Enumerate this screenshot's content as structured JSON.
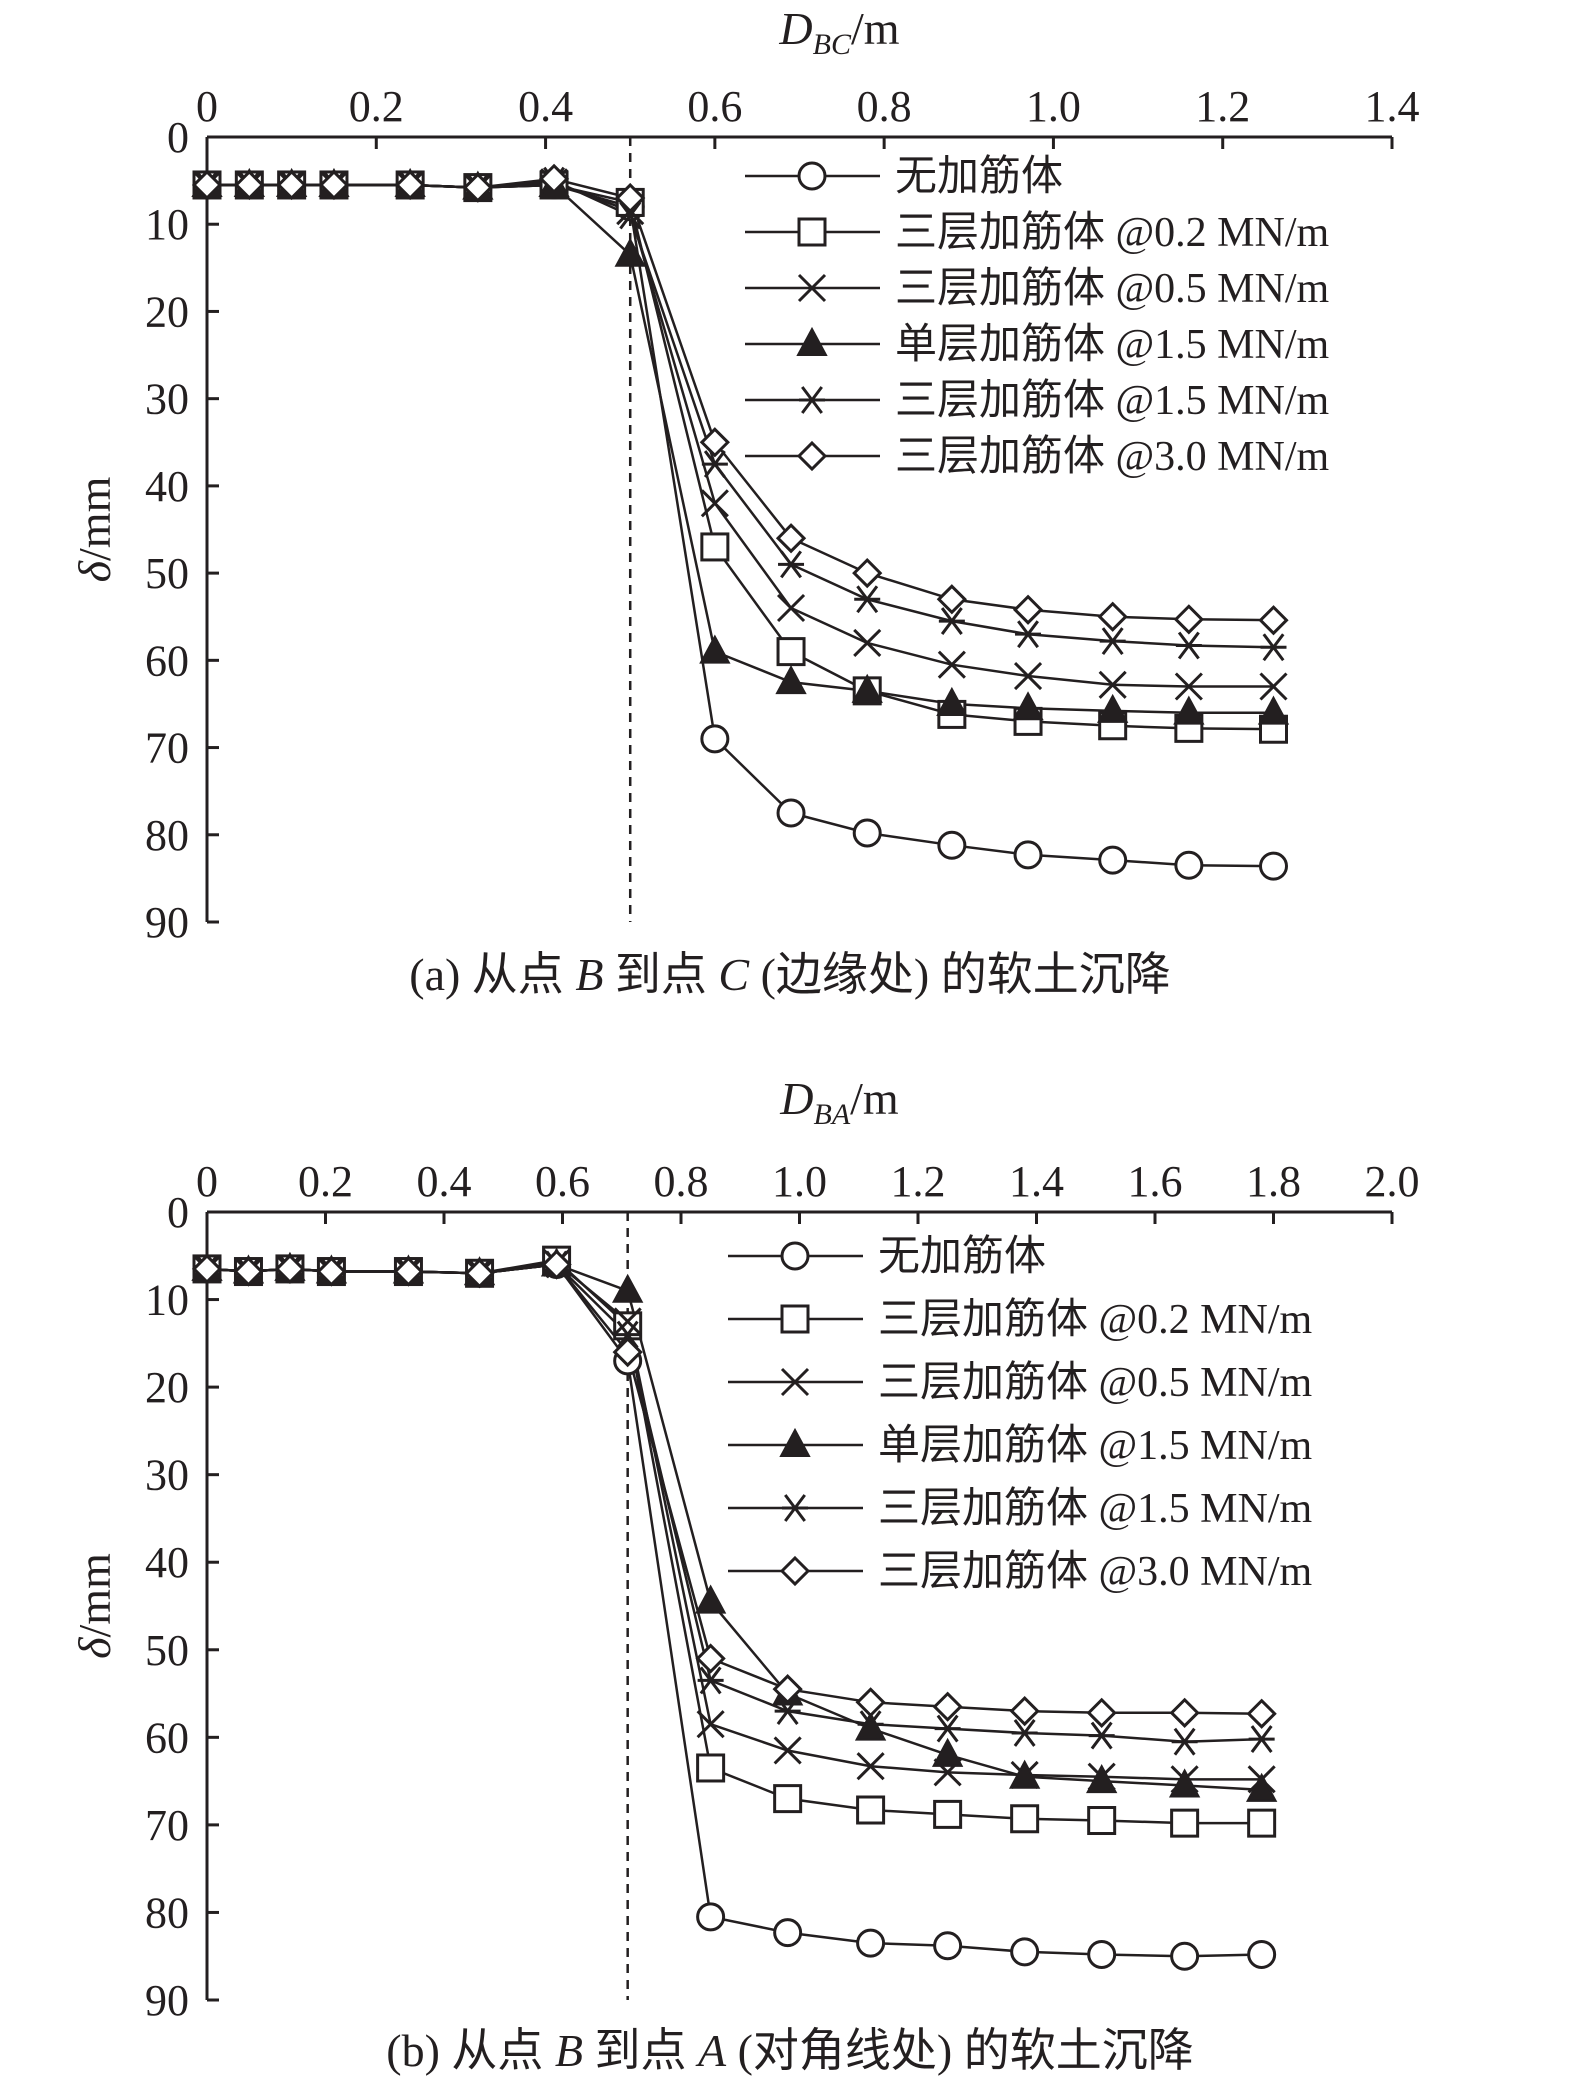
{
  "chart_data": [
    {
      "type": "line",
      "panel_caption": "(a) 从点 B 到点 C (边缘处) 的软土沉降",
      "caption_parts": {
        "pre": "(a) 从点 ",
        "v1": "B",
        "mid": " 到点 ",
        "v2": "C",
        "post": " (边缘处) 的软土沉降"
      },
      "xlabel": "D_BC/m",
      "xlabel_parts": {
        "main": "D",
        "sub": "BC",
        "unit": "/m"
      },
      "ylabel": "δ/mm",
      "ylabel_parts": {
        "main": "δ",
        "unit": "/mm"
      },
      "xlim": [
        0,
        1.4
      ],
      "ylim": [
        0,
        90
      ],
      "y_inverted": true,
      "x_axis_position": "top",
      "xticks": [
        "0",
        "0.2",
        "0.4",
        "0.6",
        "0.8",
        "1.0",
        "1.2",
        "1.4"
      ],
      "yticks": [
        "0",
        "10",
        "20",
        "30",
        "40",
        "50",
        "60",
        "70",
        "80",
        "90"
      ],
      "reference_line_x": 0.5,
      "legend_position": "top-right",
      "series": [
        {
          "name": "无加筋体",
          "marker": "circle",
          "x": [
            0,
            0.05,
            0.1,
            0.15,
            0.24,
            0.32,
            0.41,
            0.5,
            0.6,
            0.69,
            0.78,
            0.88,
            0.97,
            1.07,
            1.16,
            1.26
          ],
          "y": [
            5.5,
            5.5,
            5.5,
            5.5,
            5.5,
            5.8,
            5.5,
            8.0,
            69.0,
            77.5,
            79.8,
            81.2,
            82.3,
            82.9,
            83.5,
            83.6
          ]
        },
        {
          "name": "三层加筋体 @0.2 MN/m",
          "marker": "square",
          "x": [
            0,
            0.05,
            0.1,
            0.15,
            0.24,
            0.32,
            0.41,
            0.5,
            0.6,
            0.69,
            0.78,
            0.88,
            0.97,
            1.07,
            1.16,
            1.26
          ],
          "y": [
            5.5,
            5.5,
            5.5,
            5.5,
            5.5,
            5.8,
            5.5,
            7.5,
            47.0,
            59.0,
            63.5,
            66.2,
            67.0,
            67.5,
            67.8,
            67.9
          ]
        },
        {
          "name": "三层加筋体 @0.5 MN/m",
          "marker": "x",
          "x": [
            0,
            0.05,
            0.1,
            0.15,
            0.24,
            0.32,
            0.41,
            0.5,
            0.6,
            0.69,
            0.78,
            0.88,
            0.97,
            1.07,
            1.16,
            1.26
          ],
          "y": [
            5.5,
            5.5,
            5.5,
            5.5,
            5.5,
            5.8,
            5.2,
            8.5,
            42.0,
            54.0,
            58.0,
            60.5,
            61.8,
            62.8,
            63.0,
            63.0
          ]
        },
        {
          "name": "单层加筋体 @1.5 MN/m",
          "marker": "triangle",
          "x": [
            0,
            0.05,
            0.1,
            0.15,
            0.24,
            0.32,
            0.41,
            0.5,
            0.6,
            0.69,
            0.78,
            0.88,
            0.97,
            1.07,
            1.16,
            1.26
          ],
          "y": [
            5.5,
            5.5,
            5.5,
            5.5,
            5.5,
            5.8,
            5.5,
            13.5,
            59.0,
            62.5,
            63.5,
            65.0,
            65.5,
            65.8,
            66.0,
            66.0
          ]
        },
        {
          "name": "三层加筋体 @1.5 MN/m",
          "marker": "star",
          "x": [
            0,
            0.05,
            0.1,
            0.15,
            0.24,
            0.32,
            0.41,
            0.5,
            0.6,
            0.69,
            0.78,
            0.88,
            0.97,
            1.07,
            1.16,
            1.26
          ],
          "y": [
            5.5,
            5.5,
            5.5,
            5.5,
            5.5,
            5.8,
            5.0,
            9.0,
            37.5,
            49.0,
            53.0,
            55.5,
            57.0,
            57.8,
            58.3,
            58.5
          ]
        },
        {
          "name": "三层加筋体 @3.0 MN/m",
          "marker": "diamond",
          "x": [
            0,
            0.05,
            0.1,
            0.15,
            0.24,
            0.32,
            0.41,
            0.5,
            0.6,
            0.69,
            0.78,
            0.88,
            0.97,
            1.07,
            1.16,
            1.26
          ],
          "y": [
            5.5,
            5.5,
            5.5,
            5.5,
            5.5,
            5.8,
            4.8,
            7.0,
            35.0,
            46.0,
            50.0,
            53.0,
            54.2,
            55.0,
            55.3,
            55.4
          ]
        }
      ]
    },
    {
      "type": "line",
      "panel_caption": "(b) 从点 B 到点 A (对角线处) 的软土沉降",
      "caption_parts": {
        "pre": "(b) 从点 ",
        "v1": "B",
        "mid": " 到点 ",
        "v2": "A",
        "post": " (对角线处) 的软土沉降"
      },
      "xlabel": "D_BA/m",
      "xlabel_parts": {
        "main": "D",
        "sub": "BA",
        "unit": "/m"
      },
      "ylabel": "δ/mm",
      "ylabel_parts": {
        "main": "δ",
        "unit": "/mm"
      },
      "xlim": [
        0,
        2.0
      ],
      "ylim": [
        0,
        90
      ],
      "y_inverted": true,
      "x_axis_position": "top",
      "xticks": [
        "0",
        "0.2",
        "0.4",
        "0.6",
        "0.8",
        "1.0",
        "1.2",
        "1.4",
        "1.6",
        "1.8",
        "2.0"
      ],
      "yticks": [
        "0",
        "10",
        "20",
        "30",
        "40",
        "50",
        "60",
        "70",
        "80",
        "90"
      ],
      "reference_line_x": 0.71,
      "legend_position": "top-right",
      "series": [
        {
          "name": "无加筋体",
          "marker": "circle",
          "x": [
            0,
            0.07,
            0.14,
            0.21,
            0.34,
            0.46,
            0.59,
            0.71,
            0.85,
            0.98,
            1.12,
            1.25,
            1.38,
            1.51,
            1.65,
            1.78
          ],
          "y": [
            6.5,
            6.8,
            6.5,
            6.8,
            6.8,
            7.0,
            6.0,
            17.0,
            80.5,
            82.3,
            83.5,
            83.8,
            84.5,
            84.8,
            85.0,
            84.8
          ]
        },
        {
          "name": "三层加筋体 @0.2 MN/m",
          "marker": "square",
          "x": [
            0,
            0.07,
            0.14,
            0.21,
            0.34,
            0.46,
            0.59,
            0.71,
            0.85,
            0.98,
            1.12,
            1.25,
            1.38,
            1.51,
            1.65,
            1.78
          ],
          "y": [
            6.5,
            6.8,
            6.5,
            6.8,
            6.8,
            7.0,
            5.5,
            13.0,
            63.5,
            67.0,
            68.3,
            68.8,
            69.3,
            69.5,
            69.8,
            69.8
          ]
        },
        {
          "name": "三层加筋体 @0.5 MN/m",
          "marker": "x",
          "x": [
            0,
            0.07,
            0.14,
            0.21,
            0.34,
            0.46,
            0.59,
            0.71,
            0.85,
            0.98,
            1.12,
            1.25,
            1.38,
            1.51,
            1.65,
            1.78
          ],
          "y": [
            6.5,
            6.8,
            6.5,
            6.8,
            6.8,
            7.0,
            5.8,
            12.5,
            58.5,
            61.5,
            63.3,
            64.0,
            64.3,
            64.5,
            64.8,
            64.8
          ]
        },
        {
          "name": "单层加筋体 @1.5 MN/m",
          "marker": "triangle",
          "x": [
            0,
            0.07,
            0.14,
            0.21,
            0.34,
            0.46,
            0.59,
            0.71,
            0.85,
            0.98,
            1.12,
            1.25,
            1.38,
            1.51,
            1.65,
            1.78
          ],
          "y": [
            6.5,
            6.8,
            6.5,
            6.8,
            6.8,
            7.0,
            6.0,
            9.0,
            44.5,
            55.0,
            59.0,
            62.0,
            64.5,
            65.0,
            65.5,
            66.0
          ]
        },
        {
          "name": "三层加筋体 @1.5 MN/m",
          "marker": "star",
          "x": [
            0,
            0.07,
            0.14,
            0.21,
            0.34,
            0.46,
            0.59,
            0.71,
            0.85,
            0.98,
            1.12,
            1.25,
            1.38,
            1.51,
            1.65,
            1.78
          ],
          "y": [
            6.5,
            6.8,
            6.5,
            6.8,
            6.8,
            7.0,
            6.0,
            14.0,
            53.5,
            57.0,
            58.5,
            59.0,
            59.5,
            59.8,
            60.5,
            60.2
          ]
        },
        {
          "name": "三层加筋体 @3.0 MN/m",
          "marker": "diamond",
          "x": [
            0,
            0.07,
            0.14,
            0.21,
            0.34,
            0.46,
            0.59,
            0.71,
            0.85,
            0.98,
            1.12,
            1.25,
            1.38,
            1.51,
            1.65,
            1.78
          ],
          "y": [
            6.5,
            6.8,
            6.5,
            6.8,
            6.8,
            7.0,
            6.0,
            16.0,
            51.0,
            54.5,
            56.0,
            56.5,
            57.0,
            57.2,
            57.2,
            57.3
          ]
        }
      ]
    }
  ]
}
